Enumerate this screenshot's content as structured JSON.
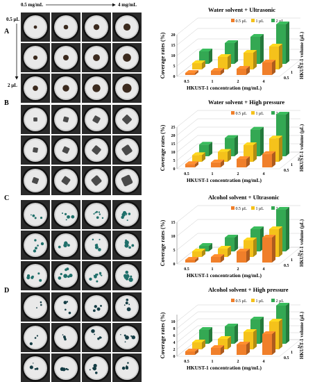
{
  "top_labels": {
    "left": "0.5 mg/mL",
    "right": "4 mg/mL"
  },
  "side_labels": {
    "top": "0.5 µL",
    "bottom": "2 µL"
  },
  "colors": {
    "s0": "#f07f2a",
    "s1": "#f5c21b",
    "s2": "#34a853",
    "dish_rim": "#1a1a1a",
    "dish_bg": "#e9e9e9"
  },
  "panels": [
    {
      "letter": "A",
      "dish_style": "water-ultrasonic"
    },
    {
      "letter": "B",
      "dish_style": "water-pressure"
    },
    {
      "letter": "C",
      "dish_style": "alcohol-ultrasonic"
    },
    {
      "letter": "D",
      "dish_style": "alcohol-pressure"
    }
  ],
  "chart_data": [
    {
      "type": "bar",
      "title": "Water solvent + Ultrasonic",
      "xlabel": "HKUST-1 concentration (mg/mL)",
      "ylabel": "Coverage rates (%)",
      "zlabel": "HKUST-1 volume (µL)",
      "categories": [
        "0.5",
        "1",
        "2",
        "4"
      ],
      "depth_labels": [
        "0.5",
        "1",
        "2"
      ],
      "yticks": [
        0,
        5,
        10,
        15,
        20
      ],
      "ylim": [
        0,
        20
      ],
      "legend": "top-right",
      "series": [
        {
          "name": "0.5 µL",
          "values": [
            1,
            2,
            3,
            6
          ]
        },
        {
          "name": "1 µL",
          "values": [
            3,
            6,
            8,
            11
          ]
        },
        {
          "name": "2 µL",
          "values": [
            6,
            10,
            13,
            19
          ]
        }
      ]
    },
    {
      "type": "bar",
      "title": "Water solvent + High pressure",
      "xlabel": "HKUST-1 concentration (mg/mL)",
      "ylabel": "Coverage rates (%)",
      "zlabel": "HKUST-1 volume (µL)",
      "categories": [
        "0.5",
        "1",
        "2",
        "4"
      ],
      "depth_labels": [
        "0.5",
        "1",
        "2"
      ],
      "yticks": [
        0,
        5,
        10,
        15,
        20,
        25
      ],
      "ylim": [
        0,
        25
      ],
      "legend": "top-right",
      "series": [
        {
          "name": "0.5 µL",
          "values": [
            2,
            3,
            5,
            8
          ]
        },
        {
          "name": "1 µL",
          "values": [
            4,
            6,
            10,
            14
          ]
        },
        {
          "name": "2 µL",
          "values": [
            7,
            11,
            16,
            25
          ]
        }
      ]
    },
    {
      "type": "bar",
      "title": "Alcohol solvent + Ultrasonic",
      "xlabel": "HKUST-1 concentration (mg/mL)",
      "ylabel": "Coverage rates (%)",
      "zlabel": "HKUST-1 volume (µL)",
      "categories": [
        "0.5",
        "1",
        "2",
        "4"
      ],
      "depth_labels": [
        "0.5",
        "1",
        "2"
      ],
      "yticks": [
        0,
        5,
        10,
        15
      ],
      "ylim": [
        0,
        15
      ],
      "legend": "top-right",
      "series": [
        {
          "name": "0.5 µL",
          "values": [
            1,
            2,
            4,
            9
          ]
        },
        {
          "name": "1 µL",
          "values": [
            2,
            3,
            6,
            10
          ]
        },
        {
          "name": "2 µL",
          "values": [
            2,
            5,
            8,
            15
          ]
        }
      ]
    },
    {
      "type": "bar",
      "title": "Alcohol solvent + High pressure",
      "xlabel": "HKUST-1 concentration (mg/mL)",
      "ylabel": "Coverage rates (%)",
      "zlabel": "HKUST-1 volume (µL)",
      "categories": [
        "0.5",
        "1",
        "2",
        "4"
      ],
      "depth_labels": [
        "0.5",
        "1",
        "2"
      ],
      "yticks": [
        0,
        2,
        4,
        6,
        8,
        10
      ],
      "ylim": [
        0,
        12
      ],
      "legend": "top-right",
      "series": [
        {
          "name": "0.5 µL",
          "values": [
            1,
            2,
            3,
            6
          ]
        },
        {
          "name": "1 µL",
          "values": [
            2,
            3,
            5,
            8
          ]
        },
        {
          "name": "2 µL",
          "values": [
            4,
            5,
            7,
            11
          ]
        }
      ]
    }
  ]
}
